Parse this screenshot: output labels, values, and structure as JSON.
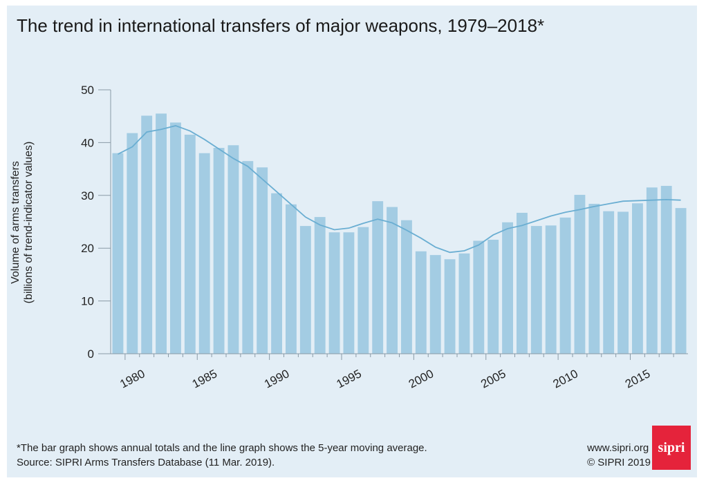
{
  "title": "The trend in international transfers of major weapons, 1979–2018*",
  "footnote": {
    "line1": "*The bar graph shows annual totals and the line graph shows the 5-year moving average.",
    "line2": "Source: SIPRI Arms Transfers Database (11 Mar. 2019)."
  },
  "credits": {
    "url": "www.sipri.org",
    "copyright": "© SIPRI 2019"
  },
  "logo": {
    "text": "sipri",
    "color": "#e5233b"
  },
  "colors": {
    "bar": "#a3cce3",
    "line": "#6aaed2",
    "background": "#e3eef6"
  },
  "chart_data": {
    "type": "bar",
    "title": "The trend in international transfers of major weapons, 1979–2018*",
    "ylabel_lines": [
      "Volume of arms transfers",
      "(billions of trend-indicator values)"
    ],
    "xlabel": "",
    "ylim": [
      0,
      50
    ],
    "yticks": [
      0,
      10,
      20,
      30,
      40,
      50
    ],
    "xticks": [
      1980,
      1985,
      1990,
      1995,
      2000,
      2005,
      2010,
      2015
    ],
    "grid": false,
    "x": [
      1979,
      1980,
      1981,
      1982,
      1983,
      1984,
      1985,
      1986,
      1987,
      1988,
      1989,
      1990,
      1991,
      1992,
      1993,
      1994,
      1995,
      1996,
      1997,
      1998,
      1999,
      2000,
      2001,
      2002,
      2003,
      2004,
      2005,
      2006,
      2007,
      2008,
      2009,
      2010,
      2011,
      2012,
      2013,
      2014,
      2015,
      2016,
      2017,
      2018
    ],
    "series": [
      {
        "type": "bar",
        "values": [
          38.0,
          41.8,
          45.1,
          45.5,
          43.8,
          41.5,
          38.0,
          39.0,
          39.5,
          36.5,
          35.3,
          30.4,
          28.3,
          24.2,
          25.9,
          23.0,
          23.0,
          24.0,
          28.9,
          27.8,
          25.3,
          19.4,
          18.7,
          17.9,
          19.0,
          21.4,
          21.6,
          24.9,
          26.7,
          24.2,
          24.3,
          25.8,
          30.1,
          28.4,
          27.0,
          26.9,
          28.5,
          31.5,
          31.8,
          27.6
        ]
      },
      {
        "type": "line",
        "values": [
          37.8,
          39.2,
          42.0,
          42.5,
          43.2,
          42.2,
          40.6,
          38.8,
          37.0,
          35.5,
          33.1,
          30.7,
          28.3,
          25.9,
          24.4,
          23.5,
          23.8,
          24.7,
          25.5,
          24.8,
          23.4,
          21.9,
          20.2,
          19.2,
          19.5,
          20.6,
          22.5,
          23.7,
          24.3,
          25.2,
          26.1,
          26.8,
          27.3,
          27.9,
          28.4,
          28.9,
          29.0,
          29.1,
          29.2,
          29.1
        ]
      }
    ]
  }
}
